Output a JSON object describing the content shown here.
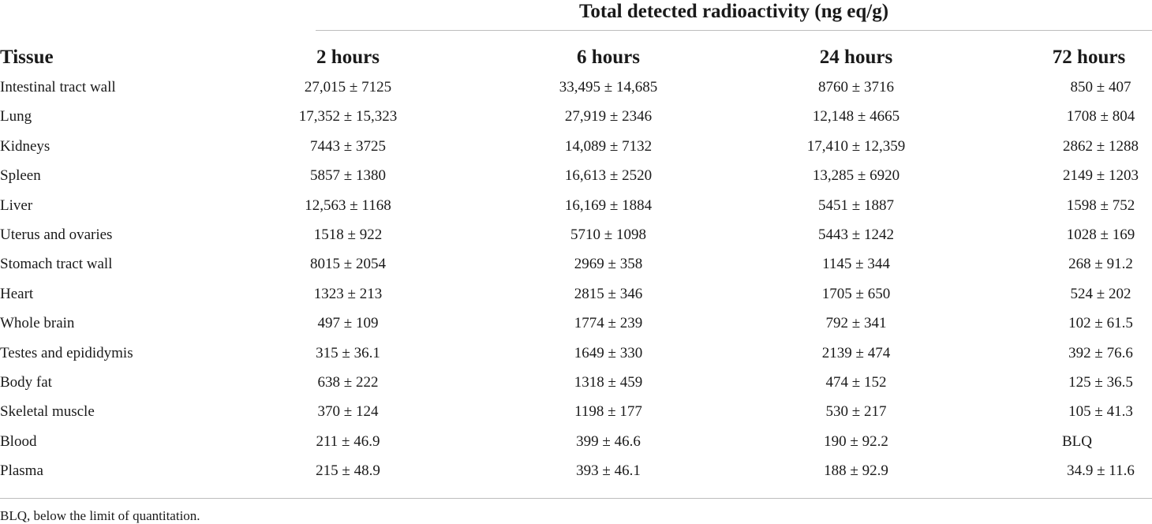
{
  "table": {
    "spanning_header": "Total detected radioactivity (ng eq/g)",
    "columns": [
      "Tissue",
      "2 hours",
      "6 hours",
      "24 hours",
      "72 hours"
    ],
    "rows": [
      [
        "Intestinal tract wall",
        "27,015 ± 7125",
        "33,495 ± 14,685",
        "8760 ± 3716",
        "850 ± 407"
      ],
      [
        "Lung",
        "17,352 ± 15,323",
        "27,919 ± 2346",
        "12,148 ± 4665",
        "1708 ± 804"
      ],
      [
        "Kidneys",
        "7443 ± 3725",
        "14,089 ± 7132",
        "17,410 ± 12,359",
        "2862 ± 1288"
      ],
      [
        "Spleen",
        "5857 ± 1380",
        "16,613 ± 2520",
        "13,285 ± 6920",
        "2149 ± 1203"
      ],
      [
        "Liver",
        "12,563 ± 1168",
        "16,169 ± 1884",
        "5451 ± 1887",
        "1598 ± 752"
      ],
      [
        "Uterus and ovaries",
        "1518 ± 922",
        "5710 ± 1098",
        "5443 ± 1242",
        "1028 ± 169"
      ],
      [
        "Stomach tract wall",
        "8015 ± 2054",
        "2969 ± 358",
        "1145 ± 344",
        "268 ± 91.2"
      ],
      [
        "Heart",
        "1323 ± 213",
        "2815 ± 346",
        "1705 ± 650",
        "524 ± 202"
      ],
      [
        "Whole brain",
        "497 ± 109",
        "1774 ± 239",
        "792 ± 341",
        "102 ± 61.5"
      ],
      [
        "Testes and epididymis",
        "315 ± 36.1",
        "1649 ± 330",
        "2139 ± 474",
        "392 ± 76.6"
      ],
      [
        "Body fat",
        "638 ± 222",
        "1318 ± 459",
        "474 ± 152",
        "125 ± 36.5"
      ],
      [
        "Skeletal muscle",
        "370 ± 124",
        "1198 ± 177",
        "530 ± 217",
        "105 ± 41.3"
      ],
      [
        "Blood",
        "211 ± 46.9",
        "399 ± 46.6",
        "190 ± 92.2",
        "BLQ"
      ],
      [
        "Plasma",
        "215 ± 48.9",
        "393 ± 46.1",
        "188 ± 92.9",
        "34.9 ± 11.6"
      ]
    ],
    "footnote": "BLQ, below the limit of quantitation."
  }
}
